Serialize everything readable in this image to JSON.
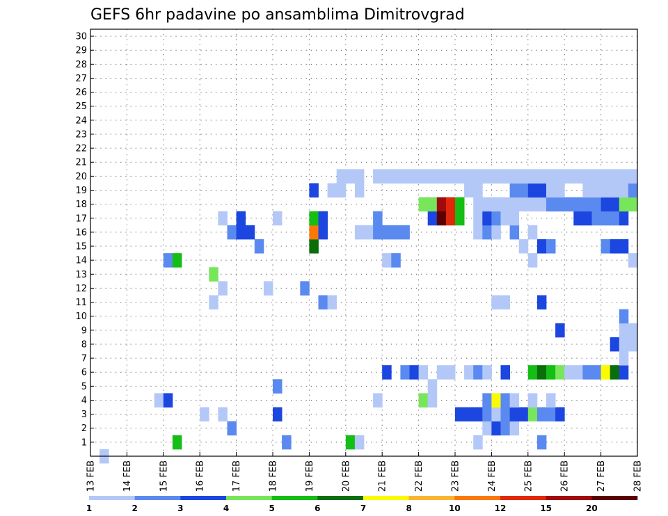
{
  "chart_data": {
    "type": "heatmap",
    "title": "GEFS 6hr padavine po ansamblima Dimitrovgrad",
    "y_ticks": [
      "1",
      "2",
      "3",
      "4",
      "5",
      "6",
      "7",
      "8",
      "9",
      "10",
      "11",
      "12",
      "13",
      "14",
      "15",
      "16",
      "17",
      "18",
      "19",
      "20",
      "21",
      "22",
      "23",
      "24",
      "25",
      "26",
      "27",
      "28",
      "29",
      "30"
    ],
    "x_ticks": [
      "13 FEB",
      "14 FEB",
      "15 FEB",
      "16 FEB",
      "17 FEB",
      "18 FEB",
      "19 FEB",
      "20 FEB",
      "21 FEB",
      "22 FEB",
      "23 FEB",
      "24 FEB",
      "25 FEB",
      "26 FEB",
      "27 FEB",
      "28 FEB"
    ],
    "x_range_steps": [
      0,
      60
    ],
    "y_range": [
      0,
      30
    ],
    "grid": true,
    "legend_labels": [
      "1",
      "2",
      "3",
      "4",
      "5",
      "6",
      "7",
      "8",
      "10",
      "12",
      "15",
      "20"
    ],
    "colors": [
      "#b4c8f8",
      "#5a8af0",
      "#1c46e0",
      "#78e65a",
      "#14be14",
      "#0a6e0a",
      "#fafa00",
      "#fab432",
      "#fa780a",
      "#e0280a",
      "#a00a0a",
      "#5a0000"
    ],
    "cells": [
      [
        2,
        0,
        0
      ],
      [
        10,
        1,
        4
      ],
      [
        22,
        1,
        1
      ],
      [
        29,
        1,
        4
      ],
      [
        30,
        1,
        0
      ],
      [
        43,
        1,
        0
      ],
      [
        50,
        1,
        1
      ],
      [
        16,
        2,
        1
      ],
      [
        44,
        2,
        0
      ],
      [
        45,
        2,
        2
      ],
      [
        46,
        2,
        1
      ],
      [
        47,
        2,
        0
      ],
      [
        13,
        3,
        0
      ],
      [
        15,
        3,
        0
      ],
      [
        21,
        3,
        2
      ],
      [
        41,
        3,
        2
      ],
      [
        42,
        3,
        2
      ],
      [
        43,
        3,
        2
      ],
      [
        44,
        3,
        1
      ],
      [
        45,
        3,
        0
      ],
      [
        46,
        3,
        1
      ],
      [
        47,
        3,
        2
      ],
      [
        48,
        3,
        2
      ],
      [
        49,
        3,
        3
      ],
      [
        50,
        3,
        1
      ],
      [
        51,
        3,
        1
      ],
      [
        52,
        3,
        2
      ],
      [
        8,
        4,
        0
      ],
      [
        9,
        4,
        2
      ],
      [
        32,
        4,
        0
      ],
      [
        37,
        4,
        3
      ],
      [
        38,
        4,
        0
      ],
      [
        44,
        4,
        1
      ],
      [
        45,
        4,
        6
      ],
      [
        46,
        4,
        1
      ],
      [
        47,
        4,
        0
      ],
      [
        49,
        4,
        0
      ],
      [
        51,
        4,
        0
      ],
      [
        21,
        5,
        1
      ],
      [
        38,
        5,
        0
      ],
      [
        33,
        6,
        2
      ],
      [
        35,
        6,
        1
      ],
      [
        36,
        6,
        2
      ],
      [
        37,
        6,
        0
      ],
      [
        39,
        6,
        0
      ],
      [
        40,
        6,
        0
      ],
      [
        42,
        6,
        0
      ],
      [
        43,
        6,
        1
      ],
      [
        44,
        6,
        0
      ],
      [
        46,
        6,
        2
      ],
      [
        49,
        6,
        4
      ],
      [
        50,
        6,
        5
      ],
      [
        51,
        6,
        4
      ],
      [
        52,
        6,
        3
      ],
      [
        53,
        6,
        0
      ],
      [
        54,
        6,
        0
      ],
      [
        55,
        6,
        1
      ],
      [
        56,
        6,
        1
      ],
      [
        57,
        6,
        6
      ],
      [
        58,
        6,
        5
      ],
      [
        59,
        6,
        2
      ],
      [
        59,
        7,
        0
      ],
      [
        58,
        8,
        2
      ],
      [
        59,
        8,
        0
      ],
      [
        60,
        8,
        0
      ],
      [
        52,
        9,
        2
      ],
      [
        59,
        9,
        0
      ],
      [
        60,
        9,
        0
      ],
      [
        59,
        10,
        1
      ],
      [
        14,
        11,
        0
      ],
      [
        26,
        11,
        1
      ],
      [
        27,
        11,
        0
      ],
      [
        45,
        11,
        0
      ],
      [
        46,
        11,
        0
      ],
      [
        50,
        11,
        2
      ],
      [
        15,
        12,
        0
      ],
      [
        20,
        12,
        0
      ],
      [
        24,
        12,
        1
      ],
      [
        14,
        13,
        3
      ],
      [
        9,
        14,
        1
      ],
      [
        10,
        14,
        4
      ],
      [
        33,
        14,
        0
      ],
      [
        34,
        14,
        1
      ],
      [
        49,
        14,
        0
      ],
      [
        60,
        14,
        0
      ],
      [
        19,
        15,
        1
      ],
      [
        25,
        15,
        5
      ],
      [
        48,
        15,
        0
      ],
      [
        50,
        15,
        2
      ],
      [
        51,
        15,
        1
      ],
      [
        57,
        15,
        1
      ],
      [
        58,
        15,
        2
      ],
      [
        59,
        15,
        2
      ],
      [
        16,
        16,
        1
      ],
      [
        17,
        16,
        2
      ],
      [
        18,
        16,
        2
      ],
      [
        25,
        16,
        8
      ],
      [
        26,
        16,
        2
      ],
      [
        30,
        16,
        0
      ],
      [
        31,
        16,
        0
      ],
      [
        32,
        16,
        1
      ],
      [
        33,
        16,
        1
      ],
      [
        34,
        16,
        1
      ],
      [
        35,
        16,
        1
      ],
      [
        43,
        16,
        0
      ],
      [
        44,
        16,
        1
      ],
      [
        45,
        16,
        0
      ],
      [
        47,
        16,
        1
      ],
      [
        49,
        16,
        0
      ],
      [
        15,
        17,
        0
      ],
      [
        17,
        17,
        2
      ],
      [
        21,
        17,
        0
      ],
      [
        25,
        17,
        4
      ],
      [
        26,
        17,
        2
      ],
      [
        32,
        17,
        1
      ],
      [
        38,
        17,
        2
      ],
      [
        39,
        17,
        11
      ],
      [
        40,
        17,
        9
      ],
      [
        41,
        17,
        4
      ],
      [
        43,
        17,
        0
      ],
      [
        44,
        17,
        2
      ],
      [
        45,
        17,
        1
      ],
      [
        46,
        17,
        0
      ],
      [
        47,
        17,
        0
      ],
      [
        54,
        17,
        2
      ],
      [
        55,
        17,
        2
      ],
      [
        56,
        17,
        1
      ],
      [
        57,
        17,
        1
      ],
      [
        58,
        17,
        1
      ],
      [
        59,
        17,
        2
      ],
      [
        37,
        18,
        3
      ],
      [
        38,
        18,
        3
      ],
      [
        39,
        18,
        10
      ],
      [
        40,
        18,
        9
      ],
      [
        41,
        18,
        4
      ],
      [
        43,
        18,
        0
      ],
      [
        44,
        18,
        0
      ],
      [
        45,
        18,
        0
      ],
      [
        46,
        18,
        0
      ],
      [
        47,
        18,
        0
      ],
      [
        48,
        18,
        0
      ],
      [
        49,
        18,
        0
      ],
      [
        50,
        18,
        0
      ],
      [
        51,
        18,
        1
      ],
      [
        52,
        18,
        1
      ],
      [
        53,
        18,
        1
      ],
      [
        54,
        18,
        1
      ],
      [
        55,
        18,
        1
      ],
      [
        56,
        18,
        1
      ],
      [
        57,
        18,
        2
      ],
      [
        58,
        18,
        2
      ],
      [
        59,
        18,
        3
      ],
      [
        60,
        18,
        3
      ],
      [
        25,
        19,
        2
      ],
      [
        27,
        19,
        0
      ],
      [
        28,
        19,
        0
      ],
      [
        30,
        19,
        0
      ],
      [
        42,
        19,
        0
      ],
      [
        43,
        19,
        0
      ],
      [
        47,
        19,
        1
      ],
      [
        48,
        19,
        1
      ],
      [
        49,
        19,
        2
      ],
      [
        50,
        19,
        2
      ],
      [
        51,
        19,
        0
      ],
      [
        52,
        19,
        0
      ],
      [
        55,
        19,
        0
      ],
      [
        56,
        19,
        0
      ],
      [
        57,
        19,
        0
      ],
      [
        58,
        19,
        0
      ],
      [
        59,
        19,
        0
      ],
      [
        60,
        19,
        1
      ],
      [
        28,
        20,
        0
      ],
      [
        29,
        20,
        0
      ],
      [
        30,
        20,
        0
      ],
      [
        32,
        20,
        0
      ],
      [
        33,
        20,
        0
      ],
      [
        34,
        20,
        0
      ],
      [
        35,
        20,
        0
      ],
      [
        36,
        20,
        0
      ],
      [
        37,
        20,
        0
      ],
      [
        38,
        20,
        0
      ],
      [
        39,
        20,
        0
      ],
      [
        40,
        20,
        0
      ],
      [
        41,
        20,
        0
      ],
      [
        42,
        20,
        0
      ],
      [
        43,
        20,
        0
      ],
      [
        44,
        20,
        0
      ],
      [
        45,
        20,
        0
      ],
      [
        46,
        20,
        0
      ],
      [
        47,
        20,
        0
      ],
      [
        48,
        20,
        0
      ],
      [
        49,
        20,
        0
      ],
      [
        50,
        20,
        0
      ],
      [
        51,
        20,
        0
      ],
      [
        52,
        20,
        0
      ],
      [
        53,
        20,
        0
      ],
      [
        54,
        20,
        0
      ],
      [
        55,
        20,
        0
      ],
      [
        56,
        20,
        0
      ],
      [
        57,
        20,
        0
      ],
      [
        58,
        20,
        0
      ],
      [
        59,
        20,
        0
      ],
      [
        60,
        20,
        0
      ]
    ]
  }
}
